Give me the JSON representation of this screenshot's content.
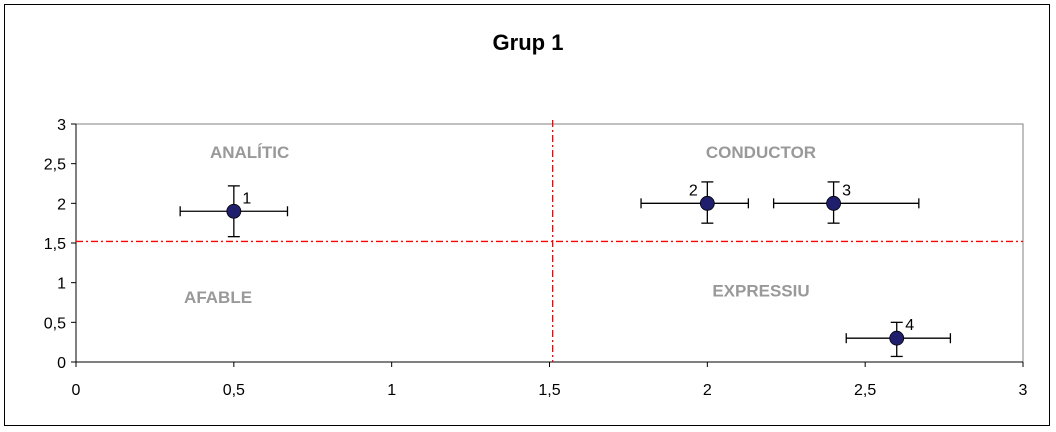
{
  "chart_data": {
    "type": "scatter",
    "title": "Grup 1",
    "xlabel": "",
    "ylabel": "",
    "xlim": [
      0,
      3
    ],
    "ylim": [
      0,
      3
    ],
    "x_ticks": [
      "0",
      "0,5",
      "1",
      "1,5",
      "2",
      "2,5",
      "3"
    ],
    "y_ticks": [
      "0",
      "0,5",
      "1",
      "1,5",
      "2",
      "2,5",
      "3"
    ],
    "grid": false,
    "legend": "none",
    "points": [
      {
        "label": "1",
        "x": 0.5,
        "y": 1.9,
        "x_err": [
          0.33,
          0.67
        ],
        "y_err": [
          1.58,
          2.22
        ]
      },
      {
        "label": "2",
        "x": 2.0,
        "y": 2.0,
        "x_err": [
          1.79,
          2.13
        ],
        "y_err": [
          1.75,
          2.27
        ]
      },
      {
        "label": "3",
        "x": 2.4,
        "y": 2.0,
        "x_err": [
          2.21,
          2.67
        ],
        "y_err": [
          1.75,
          2.27
        ]
      },
      {
        "label": "4",
        "x": 2.6,
        "y": 0.3,
        "x_err": [
          2.44,
          2.77
        ],
        "y_err": [
          0.07,
          0.5
        ]
      }
    ],
    "reference_lines": {
      "x": 1.51,
      "y": 1.52,
      "color": "#ff0000",
      "style": "dash-dot"
    },
    "quadrant_labels": [
      {
        "text": "ANALÍTIC",
        "x": 0.55,
        "y": 2.65
      },
      {
        "text": "CONDUCTOR",
        "x": 2.17,
        "y": 2.65
      },
      {
        "text": "AFABLE",
        "x": 0.45,
        "y": 0.82
      },
      {
        "text": "EXPRESSIU",
        "x": 2.17,
        "y": 0.9
      }
    ],
    "marker_color": "#1f1f6e",
    "quadrant_label_color": "#999999"
  }
}
